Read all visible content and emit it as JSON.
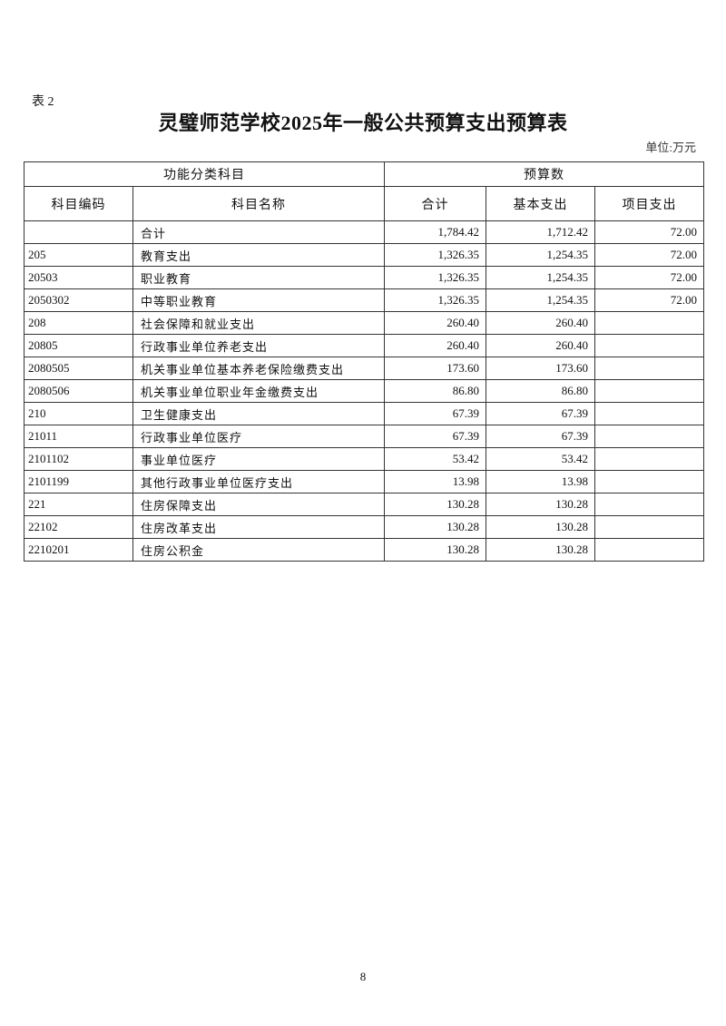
{
  "doc": {
    "table_label": "表 2",
    "title": "灵璧师范学校2025年一般公共预算支出预算表",
    "unit": "单位:万元",
    "page_number": "8"
  },
  "table": {
    "group_headers": [
      "功能分类科目",
      "预算数"
    ],
    "columns": [
      "科目编码",
      "科目名称",
      "合计",
      "基本支出",
      "项目支出"
    ],
    "rows": [
      [
        "",
        "合计",
        "1,784.42",
        "1,712.42",
        "72.00"
      ],
      [
        "205",
        "教育支出",
        "1,326.35",
        "1,254.35",
        "72.00"
      ],
      [
        "20503",
        "职业教育",
        "1,326.35",
        "1,254.35",
        "72.00"
      ],
      [
        "2050302",
        "中等职业教育",
        "1,326.35",
        "1,254.35",
        "72.00"
      ],
      [
        "208",
        "社会保障和就业支出",
        "260.40",
        "260.40",
        ""
      ],
      [
        "20805",
        "行政事业单位养老支出",
        "260.40",
        "260.40",
        ""
      ],
      [
        "2080505",
        "机关事业单位基本养老保险缴费支出",
        "173.60",
        "173.60",
        ""
      ],
      [
        "2080506",
        "机关事业单位职业年金缴费支出",
        "86.80",
        "86.80",
        ""
      ],
      [
        "210",
        "卫生健康支出",
        "67.39",
        "67.39",
        ""
      ],
      [
        "21011",
        "行政事业单位医疗",
        "67.39",
        "67.39",
        ""
      ],
      [
        "2101102",
        "事业单位医疗",
        "53.42",
        "53.42",
        ""
      ],
      [
        "2101199",
        "其他行政事业单位医疗支出",
        "13.98",
        "13.98",
        ""
      ],
      [
        "221",
        "住房保障支出",
        "130.28",
        "130.28",
        ""
      ],
      [
        "22102",
        "住房改革支出",
        "130.28",
        "130.28",
        ""
      ],
      [
        "2210201",
        "住房公积金",
        "130.28",
        "130.28",
        ""
      ]
    ]
  }
}
